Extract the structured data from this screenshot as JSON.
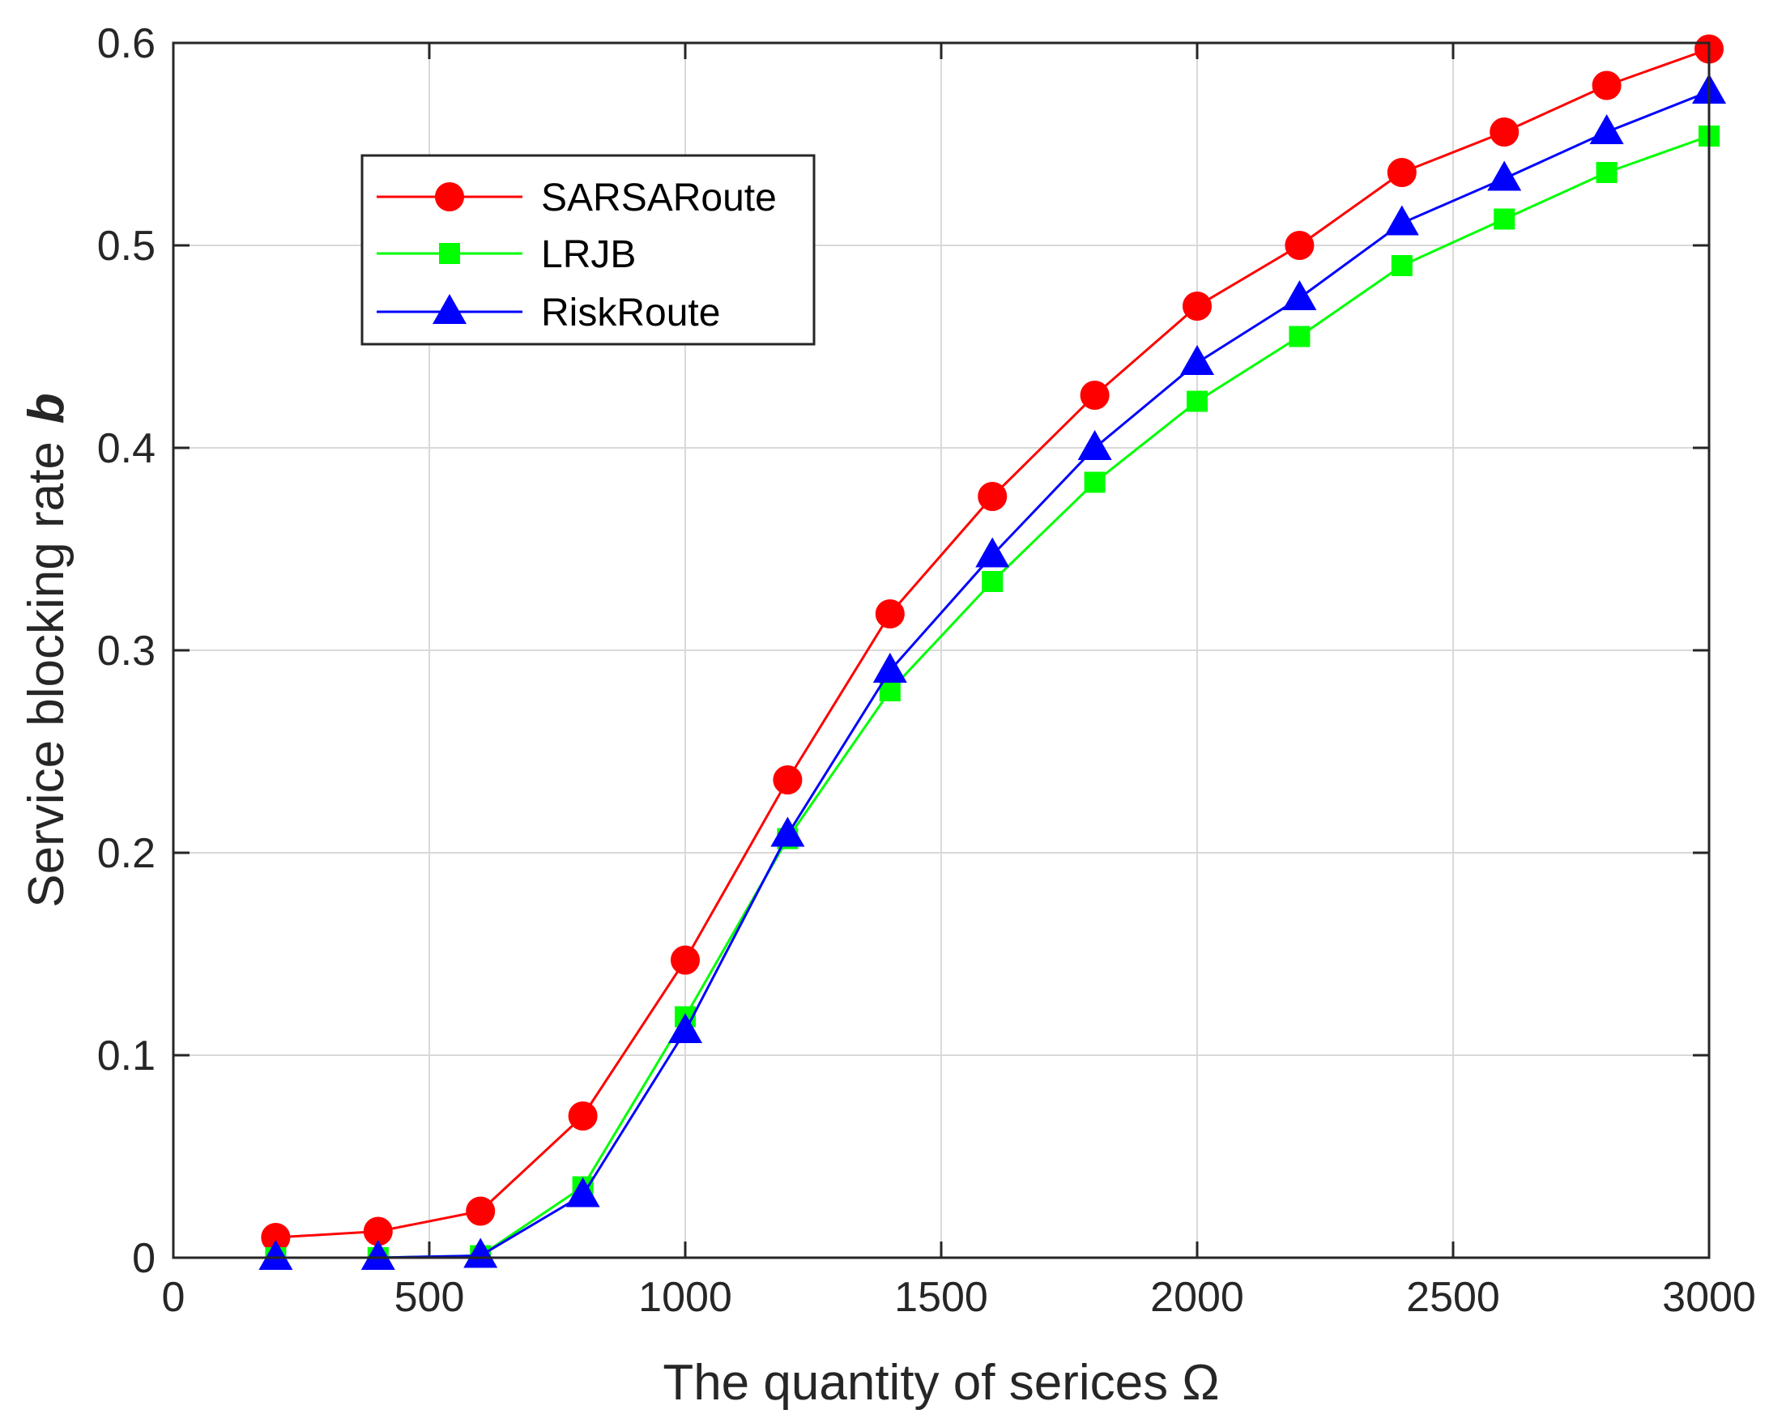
{
  "chart_data": {
    "type": "line",
    "title": "",
    "xlabel": "The quantity of serices Ω",
    "ylabel_main": "Service blocking rate",
    "ylabel_symbol": "b",
    "xlim": [
      0,
      3000
    ],
    "ylim": [
      0,
      0.6
    ],
    "xticks": [
      0,
      500,
      1000,
      1500,
      2000,
      2500,
      3000
    ],
    "xtick_labels": [
      "0",
      "500",
      "1000",
      "1500",
      "2000",
      "2500",
      "3000"
    ],
    "yticks": [
      0,
      0.1,
      0.2,
      0.3,
      0.4,
      0.5,
      0.6
    ],
    "ytick_labels": [
      "0",
      "0.1",
      "0.2",
      "0.3",
      "0.4",
      "0.5",
      "0.6"
    ],
    "grid": true,
    "legend_position": "upper-left",
    "x": [
      200,
      400,
      600,
      800,
      1000,
      1200,
      1400,
      1600,
      1800,
      2000,
      2200,
      2400,
      2600,
      2800,
      3000
    ],
    "series": [
      {
        "name": "SARSARoute",
        "color": "#ff0000",
        "marker": "circle",
        "values": [
          0.01,
          0.013,
          0.023,
          0.07,
          0.147,
          0.236,
          0.318,
          0.376,
          0.426,
          0.47,
          0.5,
          0.536,
          0.556,
          0.579,
          0.597
        ]
      },
      {
        "name": "LRJB",
        "color": "#00ff00",
        "marker": "square",
        "values": [
          0.0,
          0.0,
          0.001,
          0.035,
          0.119,
          0.207,
          0.28,
          0.334,
          0.383,
          0.423,
          0.455,
          0.49,
          0.513,
          0.536,
          0.554
        ]
      },
      {
        "name": "RiskRoute",
        "color": "#0000ff",
        "marker": "triangle",
        "values": [
          0.0,
          0.0,
          0.001,
          0.031,
          0.112,
          0.209,
          0.29,
          0.347,
          0.4,
          0.442,
          0.474,
          0.511,
          0.533,
          0.556,
          0.576
        ]
      }
    ]
  }
}
